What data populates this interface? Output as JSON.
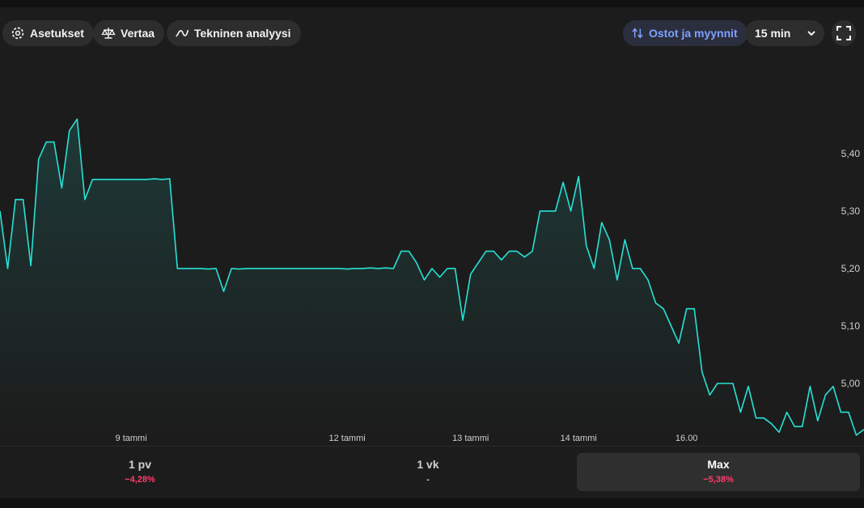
{
  "toolbar": {
    "settings_label": "Asetukset",
    "compare_label": "Vertaa",
    "tech_label": "Tekninen analyysi",
    "trades_label": "Ostot ja myynnit",
    "interval_value": "15 min",
    "icons": {
      "settings": "gear-icon",
      "compare": "scale-icon",
      "tech": "line-chart-icon",
      "trades": "swap-arrows-icon",
      "interval": "chevron-down-icon",
      "fullscreen": "fullscreen-icon"
    }
  },
  "colors": {
    "line": "#27e2d6",
    "negative": "#ff3d6e",
    "accent": "#7fa0ff"
  },
  "chart_data": {
    "type": "area",
    "title": "",
    "xlabel": "",
    "ylabel": "",
    "ylim": [
      4.91,
      5.57
    ],
    "y_axis_position": "right",
    "grid": false,
    "yticks": [
      5.4,
      5.3,
      5.2,
      5.1,
      5.0
    ],
    "ytick_labels": [
      "5,40",
      "5,30",
      "5,20",
      "5,10",
      "5,00"
    ],
    "xtick_labels": [
      {
        "index": 17,
        "label": "9 tammi"
      },
      {
        "index": 45,
        "label": "12 tammi"
      },
      {
        "index": 61,
        "label": "13 tammi"
      },
      {
        "index": 75,
        "label": "14 tammi"
      },
      {
        "index": 89,
        "label": "16.00"
      }
    ],
    "values": [
      5.3,
      5.2,
      5.32,
      5.32,
      5.205,
      5.39,
      5.42,
      5.42,
      5.34,
      5.44,
      5.46,
      5.32,
      5.355,
      5.355,
      5.355,
      5.355,
      5.355,
      5.355,
      5.355,
      5.355,
      5.356,
      5.355,
      5.356,
      5.2,
      5.2,
      5.2,
      5.2,
      5.199,
      5.2,
      5.16,
      5.2,
      5.199,
      5.2,
      5.2,
      5.2,
      5.2,
      5.2,
      5.2,
      5.2,
      5.2,
      5.2,
      5.2,
      5.2,
      5.2,
      5.2,
      5.199,
      5.2,
      5.2,
      5.201,
      5.2,
      5.201,
      5.2,
      5.23,
      5.23,
      5.21,
      5.18,
      5.2,
      5.185,
      5.2,
      5.2,
      5.11,
      5.19,
      5.21,
      5.23,
      5.23,
      5.215,
      5.23,
      5.23,
      5.22,
      5.23,
      5.3,
      5.3,
      5.3,
      5.35,
      5.3,
      5.36,
      5.24,
      5.2,
      5.28,
      5.25,
      5.18,
      5.25,
      5.2,
      5.2,
      5.18,
      5.14,
      5.13,
      5.1,
      5.07,
      5.13,
      5.13,
      5.02,
      4.98,
      5.0,
      5.0,
      5.0,
      4.95,
      4.995,
      4.94,
      4.94,
      4.93,
      4.915,
      4.95,
      4.925,
      4.925,
      4.995,
      4.935,
      4.98,
      4.995,
      4.95,
      4.95,
      4.91,
      4.92
    ]
  },
  "periods": [
    {
      "label": "1 pv",
      "change": "−4,28%"
    },
    {
      "label": "1 vk",
      "change": "-"
    },
    {
      "label": "Max",
      "change": "−5,38%"
    }
  ]
}
